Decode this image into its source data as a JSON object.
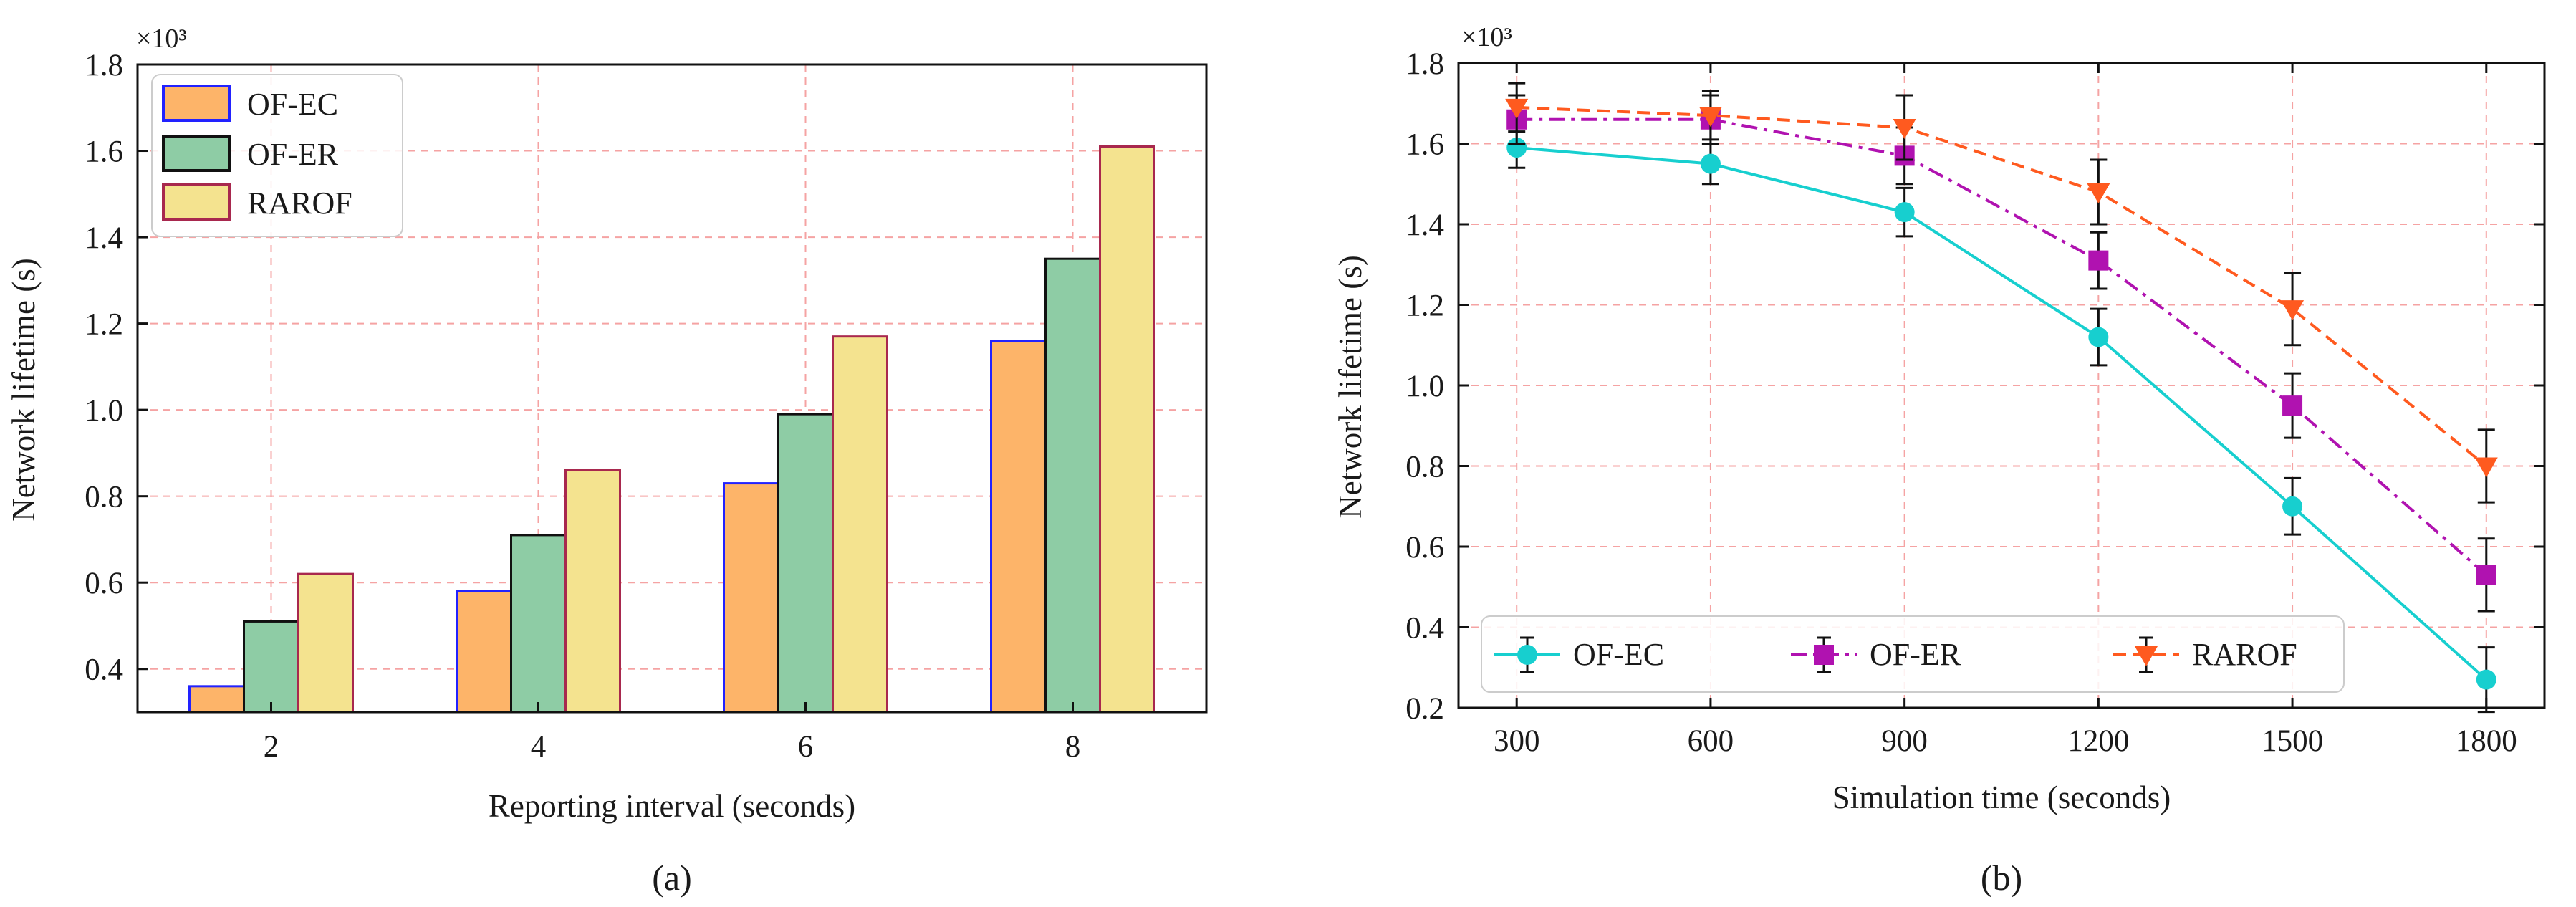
{
  "chart_data": [
    {
      "type": "bar",
      "panel_label": "(a)",
      "xlabel": "Reporting interval (seconds)",
      "ylabel": "Network lifetime (s)",
      "y_multiplier": "×10³",
      "categories": [
        "2",
        "4",
        "6",
        "8"
      ],
      "ylim": [
        0.3,
        1.8
      ],
      "yticks": [
        "0.4",
        "0.6",
        "0.8",
        "1.0",
        "1.2",
        "1.4",
        "1.6",
        "1.8"
      ],
      "grid": true,
      "legend_position": "upper-left",
      "series": [
        {
          "name": "OF-EC",
          "values": [
            0.36,
            0.58,
            0.83,
            1.16
          ],
          "fill": "#FDB469",
          "edge": "#2222FF"
        },
        {
          "name": "OF-ER",
          "values": [
            0.51,
            0.71,
            0.99,
            1.35
          ],
          "fill": "#8ECCA5",
          "edge": "#111111"
        },
        {
          "name": "RAROF",
          "values": [
            0.62,
            0.86,
            1.17,
            1.61
          ],
          "fill": "#F4E38F",
          "edge": "#A8284E"
        }
      ]
    },
    {
      "type": "line",
      "panel_label": "(b)",
      "xlabel": "Simulation time (seconds)",
      "ylabel": "Network lifetime (s)",
      "y_multiplier": "×10³",
      "x": [
        300,
        600,
        900,
        1200,
        1500,
        1800
      ],
      "xticks": [
        "300",
        "600",
        "900",
        "1200",
        "1500",
        "1800"
      ],
      "xlim": [
        210,
        1890
      ],
      "ylim": [
        0.2,
        1.8
      ],
      "yticks": [
        "0.2",
        "0.4",
        "0.6",
        "0.8",
        "1.0",
        "1.2",
        "1.4",
        "1.6",
        "1.8"
      ],
      "grid": true,
      "legend_position": "lower-left",
      "series": [
        {
          "name": "OF-EC",
          "values": [
            1.59,
            1.55,
            1.43,
            1.12,
            0.7,
            0.27
          ],
          "errors": [
            0.05,
            0.05,
            0.06,
            0.07,
            0.07,
            0.08
          ],
          "color": "#17CFCF",
          "marker": "circle",
          "dash": "solid"
        },
        {
          "name": "OF-ER",
          "values": [
            1.66,
            1.66,
            1.57,
            1.31,
            0.95,
            0.53
          ],
          "errors": [
            0.06,
            0.06,
            0.07,
            0.07,
            0.08,
            0.09
          ],
          "color": "#B012B0",
          "marker": "square",
          "dash": "dashdot"
        },
        {
          "name": "RAROF",
          "values": [
            1.69,
            1.67,
            1.64,
            1.48,
            1.19,
            0.8
          ],
          "errors": [
            0.06,
            0.06,
            0.08,
            0.08,
            0.09,
            0.09
          ],
          "color": "#FF5A1F",
          "marker": "triangle-down",
          "dash": "dashed"
        }
      ]
    }
  ]
}
